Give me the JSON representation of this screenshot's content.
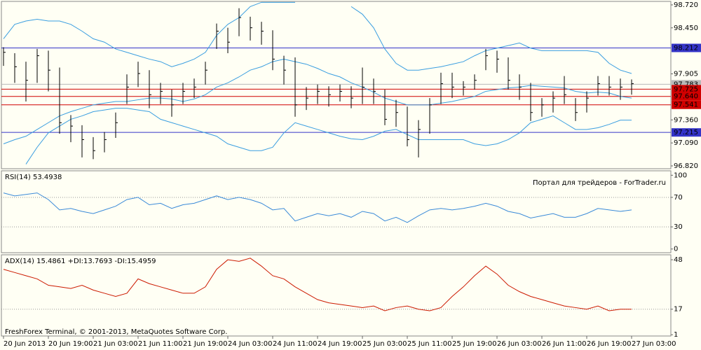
{
  "chart_data": [
    {
      "type": "ohlc",
      "categories": [
        "20 Jun 2013",
        null,
        null,
        null,
        "20 Jun 19:00",
        null,
        null,
        null,
        "21 Jun 03:00",
        null,
        null,
        null,
        "21 Jun 11:00",
        null,
        null,
        null,
        "21 Jun 19:00",
        null,
        null,
        null,
        "24 Jun 03:00",
        null,
        null,
        null,
        "24 Jun 11:00",
        null,
        null,
        null,
        "24 Jun 19:00",
        null,
        null,
        null,
        "25 Jun 03:00",
        null,
        null,
        null,
        "25 Jun 11:00",
        null,
        null,
        null,
        "25 Jun 19:00",
        null,
        null,
        null,
        "26 Jun 03:00",
        null,
        null,
        null,
        "26 Jun 11:00",
        null,
        null,
        null,
        "26 Jun 19:00",
        null,
        null,
        null,
        "27 Jun 03:00"
      ],
      "high": [
        98.22,
        98.15,
        98.05,
        98.2,
        98.18,
        97.98,
        97.42,
        97.3,
        97.16,
        97.22,
        97.45,
        97.9,
        98.05,
        97.95,
        97.8,
        97.72,
        97.8,
        97.85,
        98.05,
        98.5,
        98.45,
        98.68,
        98.58,
        98.52,
        98.42,
        98.12,
        98.1,
        97.75,
        97.78,
        97.76,
        97.78,
        97.76,
        97.98,
        97.85,
        97.72,
        97.6,
        97.52,
        97.36,
        97.62,
        97.92,
        97.92,
        97.82,
        97.9,
        98.2,
        98.18,
        98.1,
        97.9,
        97.8,
        97.62,
        97.7,
        97.88,
        97.62,
        97.7,
        97.88,
        97.88,
        97.85,
        97.84
      ],
      "low": [
        98.0,
        97.8,
        97.58,
        97.8,
        97.7,
        97.2,
        97.1,
        96.92,
        96.9,
        96.98,
        97.15,
        97.55,
        97.75,
        97.5,
        97.55,
        97.4,
        97.55,
        97.62,
        97.78,
        98.2,
        98.15,
        98.35,
        98.3,
        98.25,
        97.95,
        97.78,
        97.4,
        97.48,
        97.55,
        97.52,
        97.58,
        97.5,
        97.55,
        97.55,
        97.3,
        97.28,
        97.05,
        96.92,
        97.2,
        97.55,
        97.62,
        97.65,
        97.72,
        97.95,
        97.92,
        97.72,
        97.6,
        97.35,
        97.4,
        97.45,
        97.55,
        97.35,
        97.45,
        97.65,
        97.65,
        97.6,
        97.66
      ],
      "close": [
        98.16,
        97.99,
        97.83,
        98.12,
        97.95,
        97.33,
        97.29,
        97.13,
        97.0,
        97.13,
        97.33,
        97.75,
        97.91,
        97.66,
        97.7,
        97.54,
        97.7,
        97.75,
        97.95,
        98.41,
        98.28,
        98.57,
        98.45,
        98.41,
        98.08,
        97.95,
        97.54,
        97.62,
        97.7,
        97.66,
        97.7,
        97.62,
        97.75,
        97.7,
        97.37,
        97.45,
        97.13,
        97.25,
        97.54,
        97.79,
        97.75,
        97.75,
        97.83,
        98.12,
        98.08,
        97.83,
        97.75,
        97.45,
        97.54,
        97.62,
        97.66,
        97.45,
        97.62,
        97.79,
        97.75,
        97.75,
        97.79
      ],
      "color": "#000000",
      "bands": {
        "color": "#3a9ee0",
        "upper": [
          98.32,
          98.49,
          98.53,
          98.55,
          98.53,
          98.53,
          98.49,
          98.41,
          98.32,
          98.28,
          98.2,
          98.16,
          98.12,
          98.08,
          98.05,
          97.99,
          98.03,
          98.08,
          98.16,
          98.36,
          98.49,
          98.57,
          98.7,
          98.75,
          98.75,
          98.75,
          98.75,
          null,
          null,
          null,
          null,
          98.7,
          98.61,
          98.45,
          98.2,
          98.03,
          97.95,
          97.95,
          97.97,
          97.99,
          98.02,
          98.05,
          98.12,
          98.18,
          98.21,
          98.24,
          98.27,
          98.21,
          98.18,
          98.18,
          98.18,
          98.18,
          98.18,
          98.16,
          98.03,
          97.95,
          97.91
        ],
        "middle": [
          97.08,
          97.13,
          97.17,
          97.25,
          97.33,
          97.41,
          97.46,
          97.5,
          97.54,
          97.56,
          97.58,
          97.58,
          97.6,
          97.62,
          97.62,
          97.61,
          97.58,
          97.61,
          97.66,
          97.75,
          97.8,
          97.87,
          97.95,
          97.99,
          98.05,
          98.08,
          98.05,
          98.02,
          97.97,
          97.91,
          97.87,
          97.8,
          97.75,
          97.69,
          97.62,
          97.58,
          97.54,
          97.54,
          97.54,
          97.56,
          97.58,
          97.61,
          97.64,
          97.7,
          97.72,
          97.74,
          97.75,
          97.77,
          97.76,
          97.75,
          97.74,
          97.7,
          97.68,
          97.69,
          97.68,
          97.64,
          97.62
        ],
        "lower": [
          null,
          null,
          96.84,
          97.04,
          97.21,
          97.29,
          97.37,
          97.41,
          97.46,
          97.48,
          97.5,
          97.5,
          97.48,
          97.46,
          97.37,
          97.33,
          97.29,
          97.25,
          97.21,
          97.17,
          97.08,
          97.04,
          97.0,
          97.0,
          97.04,
          97.21,
          97.33,
          97.29,
          97.25,
          97.21,
          97.17,
          97.14,
          97.13,
          97.17,
          97.23,
          97.25,
          97.19,
          97.13,
          97.13,
          97.13,
          97.13,
          97.13,
          97.08,
          97.06,
          97.08,
          97.13,
          97.21,
          97.33,
          97.37,
          97.41,
          97.33,
          97.25,
          97.25,
          97.27,
          97.31,
          97.36,
          97.36
        ]
      },
      "ylim": [
        96.787,
        98.761
      ],
      "yticks": [
        {
          "value": 98.72,
          "label": "98.720"
        },
        {
          "value": 98.449,
          "label": "98.450"
        },
        {
          "value": 97.906,
          "label": "97.905"
        },
        {
          "value": 97.363,
          "label": "97.360"
        },
        {
          "value": 97.091,
          "label": "97.090"
        },
        {
          "value": 96.82,
          "label": "96.820"
        }
      ],
      "levels": [
        {
          "value": 98.212,
          "label": "98.212",
          "color": "#3434c8"
        },
        {
          "value": 97.783,
          "label": "97.783",
          "color": "#b8b8b8"
        },
        {
          "value": 97.725,
          "label": "97.725",
          "color": "#d00000"
        },
        {
          "value": 97.64,
          "label": "97.640",
          "color": "#d00000"
        },
        {
          "value": 97.541,
          "label": "97.541",
          "color": "#d00000"
        },
        {
          "value": 97.215,
          "label": "97.215",
          "color": "#3434c8"
        }
      ]
    },
    {
      "type": "line",
      "title": "RSI(14) 53.4938",
      "watermark": "Портал для трейдеров - ForTrader.ru",
      "values": [
        76,
        72,
        74,
        76,
        67,
        53,
        55,
        51,
        48,
        53,
        58,
        67,
        70,
        60,
        62,
        55,
        60,
        62,
        67,
        72,
        67,
        70,
        67,
        62,
        53,
        55,
        38,
        43,
        48,
        45,
        48,
        43,
        51,
        48,
        38,
        43,
        36,
        45,
        53,
        55,
        53,
        55,
        58,
        62,
        58,
        51,
        48,
        42,
        45,
        48,
        43,
        43,
        48,
        55,
        53,
        51,
        53
      ],
      "color": "#3a8ad8",
      "ylim": [
        -5,
        106
      ],
      "yticks": [
        0,
        30,
        70,
        100
      ],
      "levels": [
        30,
        70
      ]
    },
    {
      "type": "line",
      "title": "ADX(14) 15.4861 +DI:13.7693 -DI:15.4959",
      "annotation": "FreshForex Terminal, © 2001-2013, MetaQuotes Software Corp.",
      "values": [
        42,
        40,
        38,
        36,
        32,
        31,
        30,
        32,
        29,
        27,
        25,
        27,
        36,
        33,
        31,
        29,
        27,
        27,
        31,
        42,
        48,
        47,
        49,
        44,
        38,
        36,
        31,
        27,
        23,
        21,
        20,
        19,
        18,
        19,
        16,
        18,
        19,
        17,
        16,
        18,
        25,
        31,
        38,
        44,
        39,
        32,
        28,
        25,
        23,
        21,
        19,
        18,
        17,
        19,
        16,
        17,
        17
      ],
      "color": "#cc1a00",
      "ylim": [
        0.2,
        51.1
      ],
      "yticks": [
        1,
        17,
        48
      ],
      "levels": [
        17
      ]
    }
  ]
}
